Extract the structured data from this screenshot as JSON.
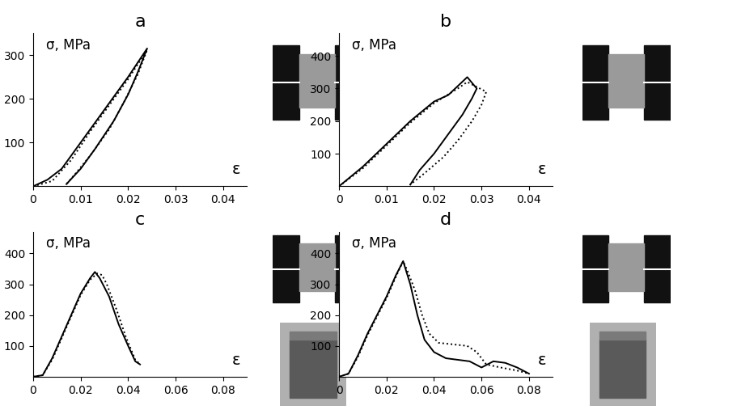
{
  "chart_data": [
    {
      "type": "line",
      "title": "a",
      "y_label": "σ, MPa",
      "x_label": "ε",
      "xlim": [
        0,
        0.045
      ],
      "ylim": [
        0,
        350
      ],
      "xticks": [
        0,
        0.01,
        0.02,
        0.03,
        0.04
      ],
      "yticks": [
        100,
        200,
        300
      ],
      "series": [
        {
          "color": "#000000",
          "line_style": "solid",
          "x": [
            0,
            0.003,
            0.006,
            0.01,
            0.015,
            0.02,
            0.024,
            0.022,
            0.02,
            0.017,
            0.013,
            0.01,
            0.007
          ],
          "values": [
            0,
            15,
            40,
            100,
            175,
            250,
            315,
            260,
            210,
            150,
            85,
            40,
            5
          ]
        },
        {
          "color": "#000000",
          "line_style": "dotted",
          "x": [
            0,
            0.004,
            0.008,
            0.012,
            0.016,
            0.02,
            0.024,
            0.022,
            0.019,
            0.016,
            0.012,
            0.009,
            0.007
          ],
          "values": [
            0,
            12,
            60,
            125,
            185,
            245,
            312,
            255,
            190,
            130,
            70,
            30,
            5
          ]
        }
      ]
    },
    {
      "type": "line",
      "title": "b",
      "y_label": "σ, MPa",
      "x_label": "ε",
      "xlim": [
        0,
        0.045
      ],
      "ylim": [
        0,
        470
      ],
      "xticks": [
        0,
        0.01,
        0.02,
        0.03,
        0.04
      ],
      "yticks": [
        100,
        200,
        300,
        400
      ],
      "series": [
        {
          "color": "#000000",
          "line_style": "solid",
          "x": [
            0,
            0.005,
            0.01,
            0.015,
            0.02,
            0.023,
            0.027,
            0.029,
            0.028,
            0.026,
            0.023,
            0.02,
            0.017,
            0.015
          ],
          "values": [
            0,
            60,
            130,
            200,
            260,
            280,
            335,
            300,
            270,
            220,
            160,
            100,
            50,
            5
          ]
        },
        {
          "color": "#000000",
          "line_style": "dotted",
          "x": [
            0,
            0.005,
            0.01,
            0.015,
            0.02,
            0.025,
            0.027,
            0.029,
            0.031,
            0.03,
            0.028,
            0.025,
            0.022,
            0.018,
            0.015
          ],
          "values": [
            0,
            55,
            125,
            195,
            255,
            300,
            320,
            305,
            290,
            250,
            200,
            140,
            90,
            40,
            5
          ]
        }
      ]
    },
    {
      "type": "line",
      "title": "c",
      "y_label": "σ, MPa",
      "x_label": "ε",
      "xlim": [
        0,
        0.09
      ],
      "ylim": [
        0,
        470
      ],
      "xticks": [
        0,
        0.02,
        0.04,
        0.06,
        0.08
      ],
      "yticks": [
        100,
        200,
        300,
        400
      ],
      "series": [
        {
          "color": "#000000",
          "line_style": "solid",
          "x": [
            0,
            0.004,
            0.008,
            0.012,
            0.016,
            0.02,
            0.024,
            0.026,
            0.028,
            0.032,
            0.036,
            0.04,
            0.043,
            0.045
          ],
          "values": [
            0,
            5,
            60,
            130,
            200,
            270,
            320,
            340,
            320,
            260,
            170,
            100,
            50,
            40
          ]
        },
        {
          "color": "#000000",
          "line_style": "dotted",
          "x": [
            0,
            0.004,
            0.008,
            0.012,
            0.016,
            0.02,
            0.024,
            0.027,
            0.029,
            0.031,
            0.035,
            0.039,
            0.043,
            0.045
          ],
          "values": [
            0,
            5,
            55,
            125,
            195,
            265,
            315,
            335,
            330,
            300,
            220,
            130,
            55,
            40
          ]
        }
      ]
    },
    {
      "type": "line",
      "title": "d",
      "y_label": "σ, MPa",
      "x_label": "ε",
      "xlim": [
        0,
        0.09
      ],
      "ylim": [
        0,
        470
      ],
      "xticks": [
        0,
        0.02,
        0.04,
        0.06,
        0.08
      ],
      "yticks": [
        100,
        200,
        300,
        400
      ],
      "series": [
        {
          "color": "#000000",
          "line_style": "solid",
          "x": [
            0,
            0.004,
            0.008,
            0.012,
            0.016,
            0.02,
            0.024,
            0.027,
            0.03,
            0.033,
            0.036,
            0.04,
            0.045,
            0.05,
            0.055,
            0.06,
            0.065,
            0.07,
            0.075,
            0.08
          ],
          "values": [
            0,
            10,
            70,
            140,
            200,
            260,
            330,
            375,
            300,
            200,
            120,
            80,
            60,
            55,
            50,
            30,
            50,
            45,
            30,
            10
          ]
        },
        {
          "color": "#000000",
          "line_style": "dotted",
          "x": [
            0,
            0.004,
            0.008,
            0.012,
            0.016,
            0.02,
            0.024,
            0.027,
            0.029,
            0.032,
            0.035,
            0.038,
            0.042,
            0.048,
            0.054,
            0.058,
            0.062,
            0.068,
            0.075,
            0.08
          ],
          "values": [
            0,
            10,
            65,
            135,
            195,
            255,
            325,
            375,
            340,
            280,
            200,
            140,
            110,
            105,
            100,
            80,
            40,
            30,
            20,
            10
          ]
        }
      ]
    }
  ]
}
